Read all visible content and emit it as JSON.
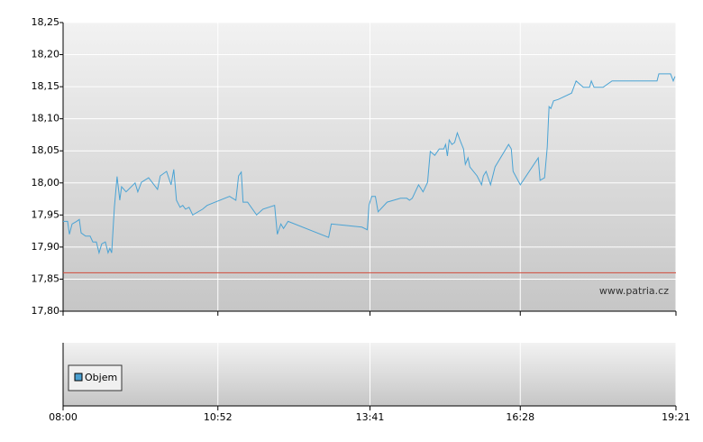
{
  "chart_data": {
    "type": "line",
    "x": [
      "08:00",
      "08:05",
      "08:07",
      "08:10",
      "08:15",
      "08:18",
      "08:20",
      "08:25",
      "08:30",
      "08:33",
      "08:37",
      "08:40",
      "08:43",
      "08:47",
      "08:50",
      "08:52",
      "08:54",
      "08:57",
      "09:00",
      "09:03",
      "09:05",
      "09:10",
      "09:20",
      "09:23",
      "09:27",
      "09:35",
      "09:45",
      "09:48",
      "09:55",
      "10:00",
      "10:03",
      "10:06",
      "10:10",
      "10:13",
      "10:16",
      "10:20",
      "10:24",
      "10:35",
      "10:40",
      "11:05",
      "11:12",
      "11:15",
      "11:18",
      "11:20",
      "11:25",
      "11:35",
      "11:42",
      "11:55",
      "11:58",
      "12:02",
      "12:05",
      "12:10",
      "12:55",
      "12:58",
      "13:32",
      "13:38",
      "13:40",
      "13:43",
      "13:47",
      "13:50",
      "14:00",
      "14:15",
      "14:22",
      "14:25",
      "14:28",
      "14:35",
      "14:40",
      "14:45",
      "14:48",
      "14:53",
      "14:58",
      "15:03",
      "15:05",
      "15:07",
      "15:09",
      "15:12",
      "15:15",
      "15:18",
      "15:22",
      "15:25",
      "15:27",
      "15:30",
      "15:32",
      "15:40",
      "15:45",
      "15:47",
      "15:50",
      "15:55",
      "16:00",
      "16:15",
      "16:18",
      "16:20",
      "16:28",
      "16:48",
      "16:50",
      "16:55",
      "16:58",
      "16:59",
      "17:00",
      "17:02",
      "17:05",
      "17:10",
      "17:25",
      "17:30",
      "17:38",
      "17:45",
      "17:47",
      "17:50",
      "18:00",
      "18:10",
      "19:00",
      "19:02",
      "19:15",
      "19:18",
      "19:20"
    ],
    "series": [
      {
        "color": "#4aa3d4",
        "values": [
          17.94,
          17.94,
          17.92,
          17.936,
          17.94,
          17.943,
          17.922,
          17.917,
          17.917,
          17.908,
          17.908,
          17.891,
          17.905,
          17.908,
          17.891,
          17.898,
          17.891,
          17.962,
          18.01,
          17.973,
          17.994,
          17.986,
          18.0,
          17.986,
          18.001,
          18.008,
          17.99,
          18.011,
          18.018,
          17.997,
          18.021,
          17.973,
          17.962,
          17.965,
          17.959,
          17.962,
          17.95,
          17.959,
          17.965,
          17.979,
          17.973,
          18.011,
          18.017,
          17.97,
          17.97,
          17.95,
          17.959,
          17.965,
          17.92,
          17.936,
          17.929,
          17.94,
          17.915,
          17.936,
          17.931,
          17.927,
          17.966,
          17.979,
          17.979,
          17.955,
          17.97,
          17.976,
          17.976,
          17.973,
          17.976,
          17.997,
          17.986,
          18.001,
          18.049,
          18.043,
          18.053,
          18.053,
          18.06,
          18.042,
          18.067,
          18.06,
          18.063,
          18.078,
          18.063,
          18.053,
          18.029,
          18.039,
          18.025,
          18.011,
          17.997,
          18.011,
          18.018,
          17.997,
          18.025,
          18.06,
          18.053,
          18.018,
          17.997,
          18.039,
          18.004,
          18.008,
          18.056,
          18.088,
          18.119,
          18.116,
          18.128,
          18.13,
          18.14,
          18.159,
          18.149,
          18.149,
          18.159,
          18.149,
          18.149,
          18.159,
          18.159,
          18.17,
          18.17,
          18.159,
          18.166
        ]
      }
    ],
    "reference_line": {
      "value": 17.86,
      "color": "#d04a3a"
    },
    "xlim": [
      "08:00",
      "19:21"
    ],
    "xticks": [
      "08:00",
      "10:52",
      "13:41",
      "16:28",
      "19:21"
    ],
    "ylim": [
      17.8,
      18.25
    ],
    "yticks": [
      {
        "value": 17.8,
        "label": "17,80"
      },
      {
        "value": 17.85,
        "label": "17,85"
      },
      {
        "value": 17.9,
        "label": "17,90"
      },
      {
        "value": 17.95,
        "label": "17,95"
      },
      {
        "value": 18.0,
        "label": "18,00"
      },
      {
        "value": 18.05,
        "label": "18,05"
      },
      {
        "value": 18.1,
        "label": "18,10"
      },
      {
        "value": 18.15,
        "label": "18,15"
      },
      {
        "value": 18.2,
        "label": "18,20"
      },
      {
        "value": 18.25,
        "label": "18,25"
      }
    ],
    "grid": true,
    "watermark": "www.patria.cz",
    "volume": {
      "name": "Objem",
      "color": "#4a9fd0"
    }
  }
}
